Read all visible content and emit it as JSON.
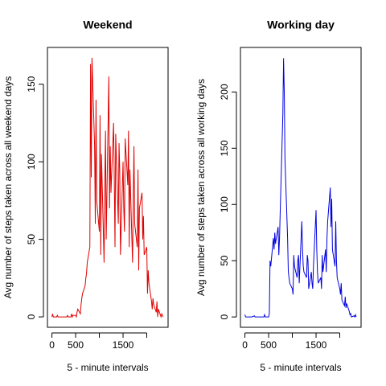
{
  "chart_data": [
    {
      "type": "line",
      "title": "Weekend",
      "x_label": "5 - minute intervals",
      "y_label": "Avg number of steps taken across all weekend days",
      "x": [
        0,
        15,
        30,
        45,
        100,
        115,
        130,
        145,
        200,
        215,
        230,
        245,
        300,
        315,
        330,
        345,
        400,
        415,
        430,
        445,
        500,
        515,
        530,
        545,
        600,
        615,
        630,
        645,
        700,
        715,
        730,
        745,
        800,
        815,
        830,
        845,
        900,
        915,
        930,
        945,
        1000,
        1015,
        1030,
        1045,
        1100,
        1115,
        1130,
        1145,
        1200,
        1215,
        1230,
        1245,
        1300,
        1315,
        1330,
        1345,
        1400,
        1415,
        1430,
        1445,
        1500,
        1515,
        1530,
        1545,
        1600,
        1615,
        1630,
        1645,
        1700,
        1715,
        1730,
        1745,
        1800,
        1815,
        1830,
        1845,
        1900,
        1915,
        1930,
        1945,
        2000,
        2015,
        2030,
        2045,
        2100,
        2115,
        2130,
        2145,
        2200,
        2215,
        2230,
        2245,
        2300,
        2315,
        2330,
        2345
      ],
      "series": [
        {
          "name": "Weekend",
          "color": "#e00000",
          "values": [
            0,
            2,
            0,
            0,
            0,
            1,
            0,
            0,
            0,
            0,
            0,
            0,
            0,
            0,
            1,
            0,
            0,
            2,
            0,
            1,
            1,
            0,
            3,
            5,
            2,
            8,
            12,
            15,
            20,
            25,
            28,
            35,
            45,
            163,
            90,
            167,
            110,
            60,
            140,
            75,
            55,
            130,
            40,
            105,
            35,
            85,
            120,
            50,
            155,
            70,
            110,
            80,
            125,
            90,
            45,
            118,
            60,
            112,
            95,
            40,
            100,
            70,
            55,
            115,
            85,
            120,
            45,
            95,
            35,
            75,
            110,
            60,
            45,
            95,
            30,
            70,
            80,
            50,
            65,
            40,
            45,
            15,
            30,
            22,
            10,
            5,
            12,
            8,
            3,
            10,
            0,
            5,
            0,
            2,
            1,
            0
          ]
        }
      ],
      "xlim": [
        -94,
        2449
      ],
      "ylim": [
        -6.7,
        173.7
      ],
      "xticks": [
        0,
        500,
        {
          "value": 1000,
          "label": null
        },
        1500,
        {
          "value": 2000,
          "label": null
        }
      ],
      "yticks": [
        0,
        50,
        100,
        150
      ]
    },
    {
      "type": "line",
      "title": "Working day",
      "x_label": "5 - minute intervals",
      "y_label": "Avg number of steps taken across all working days",
      "x": [
        0,
        15,
        30,
        45,
        100,
        115,
        130,
        145,
        200,
        215,
        230,
        245,
        300,
        315,
        330,
        345,
        400,
        415,
        430,
        445,
        500,
        515,
        530,
        545,
        600,
        615,
        630,
        645,
        700,
        715,
        730,
        745,
        800,
        815,
        830,
        845,
        900,
        915,
        930,
        945,
        1000,
        1015,
        1030,
        1045,
        1100,
        1115,
        1130,
        1145,
        1200,
        1215,
        1230,
        1245,
        1300,
        1315,
        1330,
        1345,
        1400,
        1415,
        1430,
        1445,
        1500,
        1515,
        1530,
        1545,
        1600,
        1615,
        1630,
        1645,
        1700,
        1715,
        1730,
        1745,
        1800,
        1815,
        1830,
        1845,
        1900,
        1915,
        1930,
        1945,
        2000,
        2015,
        2030,
        2045,
        2100,
        2115,
        2130,
        2145,
        2200,
        2215,
        2230,
        2245,
        2300,
        2315,
        2330,
        2345
      ],
      "series": [
        {
          "name": "Working day",
          "color": "#0000e0",
          "values": [
            2,
            0,
            0,
            0,
            0,
            0,
            0,
            0,
            1,
            0,
            0,
            0,
            0,
            0,
            0,
            0,
            0,
            2,
            0,
            0,
            0,
            3,
            50,
            45,
            70,
            60,
            75,
            65,
            80,
            55,
            70,
            95,
            180,
            230,
            200,
            140,
            70,
            40,
            35,
            30,
            25,
            20,
            55,
            45,
            35,
            50,
            55,
            30,
            85,
            60,
            45,
            40,
            35,
            55,
            50,
            25,
            40,
            30,
            25,
            45,
            95,
            60,
            40,
            30,
            35,
            25,
            55,
            40,
            60,
            40,
            70,
            85,
            115,
            80,
            105,
            60,
            45,
            85,
            50,
            35,
            25,
            20,
            30,
            15,
            10,
            18,
            8,
            12,
            5,
            2,
            3,
            0,
            1,
            0,
            2,
            0
          ]
        }
      ],
      "xlim": [
        -94,
        2449
      ],
      "ylim": [
        -9.2,
        239.6
      ],
      "xticks": [
        0,
        500,
        {
          "value": 1000,
          "label": null
        },
        1500,
        {
          "value": 2000,
          "label": null
        }
      ],
      "yticks": [
        0,
        50,
        100,
        150,
        200
      ]
    }
  ]
}
